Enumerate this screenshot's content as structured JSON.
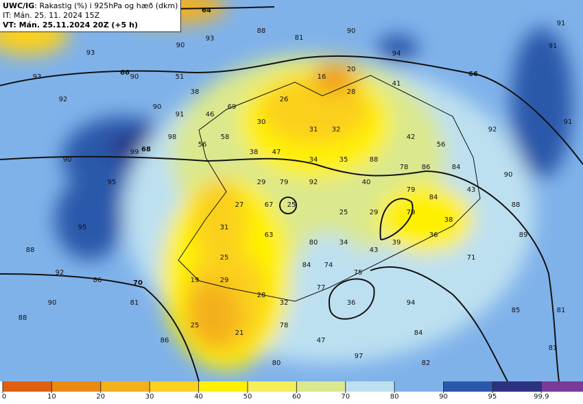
{
  "header": {
    "model": "UWC/IG",
    "field": ": Rakastig (%) i 925hPa og hæð (dkm)",
    "it": "IT: Mán. 25. 11. 2024 15Z",
    "vt": "VT: Mán. 25.11.2024 20Z (+5 h)"
  },
  "contour_labels": [
    64,
    66,
    66,
    68,
    70
  ],
  "map_labels": [
    88,
    81,
    90,
    91,
    90,
    93,
    94,
    91,
    93,
    90,
    51,
    20,
    16,
    41,
    93,
    38,
    28,
    92,
    26,
    90,
    91,
    69,
    46,
    30,
    31,
    32,
    92,
    91,
    58,
    98,
    42,
    56,
    56,
    99,
    38,
    47,
    90,
    34,
    35,
    88,
    78,
    86,
    84,
    90,
    29,
    79,
    92,
    40,
    95,
    79,
    43,
    84,
    88,
    27,
    67,
    25,
    25,
    29,
    79,
    38,
    95,
    31,
    63,
    89,
    36,
    80,
    34,
    39,
    88,
    43,
    25,
    71,
    84,
    74,
    92,
    75,
    86,
    19,
    29,
    77,
    28,
    32,
    36,
    94,
    90,
    81,
    85,
    81,
    88,
    78,
    25,
    21,
    84,
    86,
    47,
    81,
    97,
    80,
    82
  ],
  "colorbar": {
    "ticks": [
      0,
      10,
      20,
      30,
      40,
      50,
      60,
      70,
      80,
      90,
      95,
      99.9
    ],
    "colors": [
      "#e0600f",
      "#ea8a12",
      "#f4b01a",
      "#fbd01e",
      "#fff000",
      "#f3ee5a",
      "#dbe88e",
      "#bde0f0",
      "#80b2ea",
      "#2a58aa",
      "#2c3180",
      "#7a3a98"
    ]
  }
}
